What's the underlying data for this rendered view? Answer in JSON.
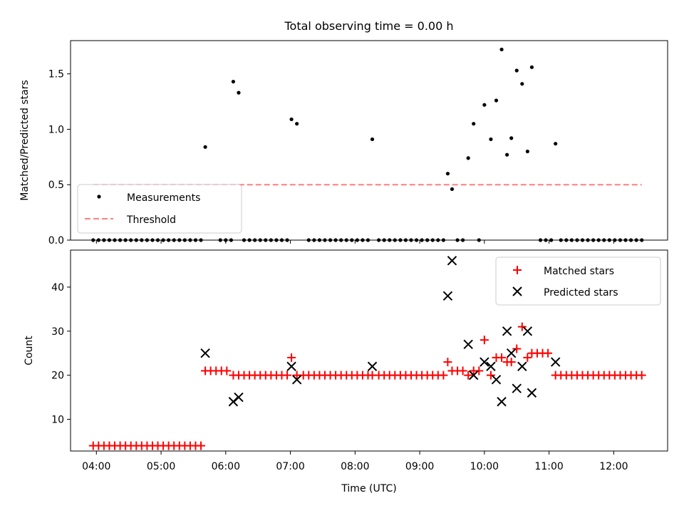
{
  "chart_data": [
    {
      "type": "scatter",
      "title": "Total observing time = 0.00 h",
      "xlabel": "",
      "ylabel": "Matched/Predicted stars",
      "xlim": [
        "03:36",
        "12:50"
      ],
      "ylim": [
        0,
        1.8
      ],
      "x_tick_labels_hidden": true,
      "y_ticks": [
        "0.0",
        "0.5",
        "1.0",
        "1.5"
      ],
      "legend": {
        "placement": "lower-left",
        "entries": [
          "Measurements",
          "Threshold"
        ]
      },
      "series": [
        {
          "name": "Measurements",
          "marker": "dot",
          "color": "#000000",
          "points": [
            [
              "03:57",
              0
            ],
            [
              "04:02",
              0
            ],
            [
              "04:07",
              0
            ],
            [
              "04:12",
              0
            ],
            [
              "04:17",
              0
            ],
            [
              "04:22",
              0
            ],
            [
              "04:27",
              0
            ],
            [
              "04:32",
              0
            ],
            [
              "04:37",
              0
            ],
            [
              "04:42",
              0
            ],
            [
              "04:47",
              0
            ],
            [
              "04:52",
              0
            ],
            [
              "04:57",
              0
            ],
            [
              "05:02",
              0
            ],
            [
              "05:07",
              0
            ],
            [
              "05:12",
              0
            ],
            [
              "05:17",
              0
            ],
            [
              "05:22",
              0
            ],
            [
              "05:27",
              0
            ],
            [
              "05:32",
              0
            ],
            [
              "05:37",
              0
            ],
            [
              "05:41",
              0.84
            ],
            [
              "05:55",
              0
            ],
            [
              "06:00",
              0
            ],
            [
              "06:05",
              0
            ],
            [
              "06:07",
              1.43
            ],
            [
              "06:12",
              1.33
            ],
            [
              "06:17",
              0
            ],
            [
              "06:22",
              0
            ],
            [
              "06:27",
              0
            ],
            [
              "06:32",
              0
            ],
            [
              "06:37",
              0
            ],
            [
              "06:42",
              0
            ],
            [
              "06:47",
              0
            ],
            [
              "06:52",
              0
            ],
            [
              "06:57",
              0
            ],
            [
              "07:01",
              1.09
            ],
            [
              "07:06",
              1.05
            ],
            [
              "07:17",
              0
            ],
            [
              "07:22",
              0
            ],
            [
              "07:27",
              0
            ],
            [
              "07:32",
              0
            ],
            [
              "07:37",
              0
            ],
            [
              "07:42",
              0
            ],
            [
              "07:47",
              0
            ],
            [
              "07:52",
              0
            ],
            [
              "07:57",
              0
            ],
            [
              "08:02",
              0
            ],
            [
              "08:07",
              0
            ],
            [
              "08:12",
              0
            ],
            [
              "08:16",
              0.91
            ],
            [
              "08:22",
              0
            ],
            [
              "08:27",
              0
            ],
            [
              "08:32",
              0
            ],
            [
              "08:37",
              0
            ],
            [
              "08:42",
              0
            ],
            [
              "08:47",
              0
            ],
            [
              "08:52",
              0
            ],
            [
              "08:57",
              0
            ],
            [
              "09:02",
              0
            ],
            [
              "09:07",
              0
            ],
            [
              "09:12",
              0
            ],
            [
              "09:17",
              0
            ],
            [
              "09:22",
              0
            ],
            [
              "09:26",
              0.6
            ],
            [
              "09:30",
              0.46
            ],
            [
              "09:35",
              0
            ],
            [
              "09:40",
              0
            ],
            [
              "09:45",
              0.74
            ],
            [
              "09:50",
              1.05
            ],
            [
              "09:55",
              0
            ],
            [
              "10:00",
              1.22
            ],
            [
              "10:06",
              0.91
            ],
            [
              "10:11",
              1.26
            ],
            [
              "10:16",
              1.72
            ],
            [
              "10:21",
              0.77
            ],
            [
              "10:25",
              0.92
            ],
            [
              "10:30",
              1.53
            ],
            [
              "10:35",
              1.41
            ],
            [
              "10:40",
              0.8
            ],
            [
              "10:44",
              1.56
            ],
            [
              "10:52",
              0
            ],
            [
              "10:57",
              0
            ],
            [
              "11:02",
              0
            ],
            [
              "11:06",
              0.87
            ],
            [
              "11:11",
              0
            ],
            [
              "11:16",
              0
            ],
            [
              "11:21",
              0
            ],
            [
              "11:26",
              0
            ],
            [
              "11:31",
              0
            ],
            [
              "11:36",
              0
            ],
            [
              "11:41",
              0
            ],
            [
              "11:46",
              0
            ],
            [
              "11:51",
              0
            ],
            [
              "11:56",
              0
            ],
            [
              "12:01",
              0
            ],
            [
              "12:06",
              0
            ],
            [
              "12:11",
              0
            ],
            [
              "12:16",
              0
            ],
            [
              "12:21",
              0
            ],
            [
              "12:26",
              0
            ]
          ]
        },
        {
          "name": "Threshold",
          "style": "dashed",
          "color": "#ff7f7f",
          "points": [
            [
              "03:57",
              0.5
            ],
            [
              "12:26",
              0.5
            ]
          ]
        }
      ]
    },
    {
      "type": "scatter",
      "title": "",
      "xlabel": "Time (UTC)",
      "ylabel": "Count",
      "xlim": [
        "03:36",
        "12:50"
      ],
      "ylim": [
        2.8,
        48.4
      ],
      "x_ticks": [
        "04:00",
        "05:00",
        "06:00",
        "07:00",
        "08:00",
        "09:00",
        "10:00",
        "11:00",
        "12:00"
      ],
      "y_ticks": [
        "10",
        "20",
        "30",
        "40"
      ],
      "legend": {
        "placement": "upper-right",
        "entries": [
          "Matched stars",
          "Predicted stars"
        ]
      },
      "series": [
        {
          "name": "Matched stars",
          "marker": "plus",
          "color": "#ff0000",
          "points": [
            [
              "03:57",
              4
            ],
            [
              "04:02",
              4
            ],
            [
              "04:07",
              4
            ],
            [
              "04:12",
              4
            ],
            [
              "04:17",
              4
            ],
            [
              "04:22",
              4
            ],
            [
              "04:27",
              4
            ],
            [
              "04:32",
              4
            ],
            [
              "04:37",
              4
            ],
            [
              "04:42",
              4
            ],
            [
              "04:47",
              4
            ],
            [
              "04:52",
              4
            ],
            [
              "04:57",
              4
            ],
            [
              "05:02",
              4
            ],
            [
              "05:07",
              4
            ],
            [
              "05:12",
              4
            ],
            [
              "05:17",
              4
            ],
            [
              "05:22",
              4
            ],
            [
              "05:27",
              4
            ],
            [
              "05:32",
              4
            ],
            [
              "05:37",
              4
            ],
            [
              "05:41",
              21
            ],
            [
              "05:46",
              21
            ],
            [
              "05:51",
              21
            ],
            [
              "05:56",
              21
            ],
            [
              "06:01",
              21
            ],
            [
              "06:07",
              20
            ],
            [
              "06:12",
              20
            ],
            [
              "06:17",
              20
            ],
            [
              "06:22",
              20
            ],
            [
              "06:27",
              20
            ],
            [
              "06:32",
              20
            ],
            [
              "06:37",
              20
            ],
            [
              "06:42",
              20
            ],
            [
              "06:47",
              20
            ],
            [
              "06:52",
              20
            ],
            [
              "06:57",
              20
            ],
            [
              "07:01",
              24
            ],
            [
              "07:06",
              20
            ],
            [
              "07:12",
              20
            ],
            [
              "07:17",
              20
            ],
            [
              "07:22",
              20
            ],
            [
              "07:27",
              20
            ],
            [
              "07:32",
              20
            ],
            [
              "07:37",
              20
            ],
            [
              "07:42",
              20
            ],
            [
              "07:47",
              20
            ],
            [
              "07:52",
              20
            ],
            [
              "07:57",
              20
            ],
            [
              "08:02",
              20
            ],
            [
              "08:07",
              20
            ],
            [
              "08:12",
              20
            ],
            [
              "08:16",
              20
            ],
            [
              "08:22",
              20
            ],
            [
              "08:27",
              20
            ],
            [
              "08:32",
              20
            ],
            [
              "08:37",
              20
            ],
            [
              "08:42",
              20
            ],
            [
              "08:47",
              20
            ],
            [
              "08:52",
              20
            ],
            [
              "08:57",
              20
            ],
            [
              "09:02",
              20
            ],
            [
              "09:07",
              20
            ],
            [
              "09:12",
              20
            ],
            [
              "09:17",
              20
            ],
            [
              "09:22",
              20
            ],
            [
              "09:26",
              23
            ],
            [
              "09:30",
              21
            ],
            [
              "09:35",
              21
            ],
            [
              "09:40",
              21
            ],
            [
              "09:45",
              20
            ],
            [
              "09:50",
              21
            ],
            [
              "09:55",
              21
            ],
            [
              "10:00",
              28
            ],
            [
              "10:06",
              20
            ],
            [
              "10:11",
              24
            ],
            [
              "10:16",
              24
            ],
            [
              "10:21",
              23
            ],
            [
              "10:25",
              23
            ],
            [
              "10:30",
              26
            ],
            [
              "10:35",
              31
            ],
            [
              "10:40",
              24
            ],
            [
              "10:44",
              25
            ],
            [
              "10:49",
              25
            ],
            [
              "10:54",
              25
            ],
            [
              "10:59",
              25
            ],
            [
              "11:06",
              20
            ],
            [
              "11:11",
              20
            ],
            [
              "11:16",
              20
            ],
            [
              "11:21",
              20
            ],
            [
              "11:26",
              20
            ],
            [
              "11:31",
              20
            ],
            [
              "11:36",
              20
            ],
            [
              "11:41",
              20
            ],
            [
              "11:46",
              20
            ],
            [
              "11:51",
              20
            ],
            [
              "11:56",
              20
            ],
            [
              "12:01",
              20
            ],
            [
              "12:06",
              20
            ],
            [
              "12:11",
              20
            ],
            [
              "12:16",
              20
            ],
            [
              "12:21",
              20
            ],
            [
              "12:26",
              20
            ]
          ]
        },
        {
          "name": "Predicted stars",
          "marker": "x",
          "color": "#000000",
          "points": [
            [
              "05:41",
              25
            ],
            [
              "06:07",
              14
            ],
            [
              "06:12",
              15
            ],
            [
              "07:01",
              22
            ],
            [
              "07:06",
              19
            ],
            [
              "08:16",
              22
            ],
            [
              "09:26",
              38
            ],
            [
              "09:30",
              46
            ],
            [
              "09:45",
              27
            ],
            [
              "09:50",
              20
            ],
            [
              "10:00",
              23
            ],
            [
              "10:06",
              22
            ],
            [
              "10:11",
              19
            ],
            [
              "10:16",
              14
            ],
            [
              "10:21",
              30
            ],
            [
              "10:25",
              25
            ],
            [
              "10:30",
              17
            ],
            [
              "10:35",
              22
            ],
            [
              "10:40",
              30
            ],
            [
              "10:44",
              16
            ],
            [
              "11:06",
              23
            ]
          ]
        }
      ]
    }
  ]
}
